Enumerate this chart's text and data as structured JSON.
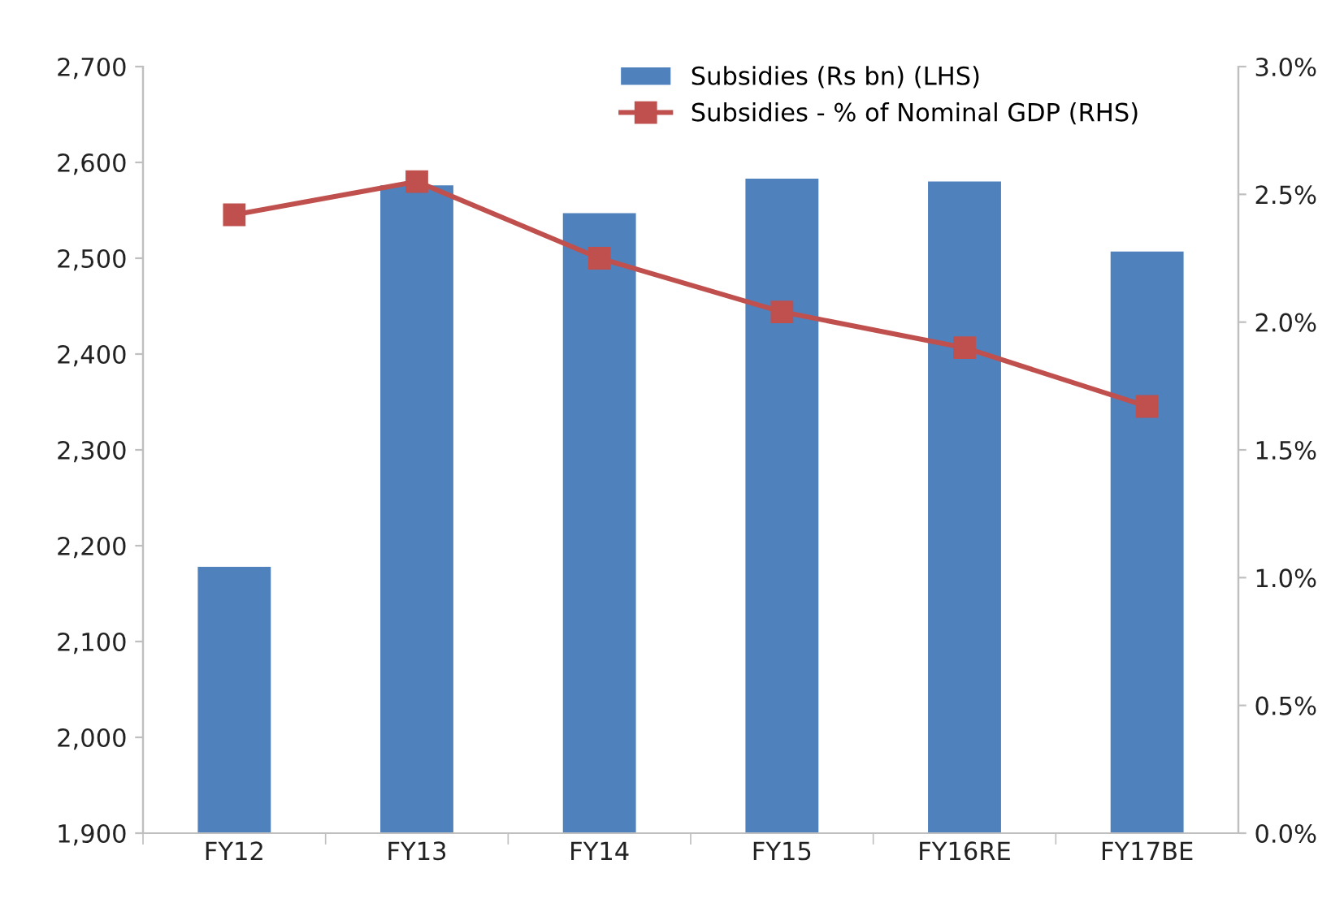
{
  "chart_data": {
    "type": "bar",
    "categories": [
      "FY12",
      "FY13",
      "FY14",
      "FY15",
      "FY16RE",
      "FY17BE"
    ],
    "series": [
      {
        "name": "Subsidies (Rs bn) (LHS)",
        "color": "#4f81bd",
        "values": [
          2178,
          2576,
          2547,
          2583,
          2580,
          2507
        ]
      },
      {
        "name": "Subsidies - % of Nominal GDP (RHS)",
        "type": "line",
        "axis": "y2",
        "color": "#c0504d",
        "marker": "square",
        "values": [
          2.42,
          2.55,
          2.25,
          2.04,
          1.9,
          1.67
        ]
      }
    ],
    "ylim": [
      1900,
      2700
    ],
    "yticks": [
      {
        "value": 1900,
        "label": "1,900"
      },
      {
        "value": 2000,
        "label": "2,000"
      },
      {
        "value": 2100,
        "label": "2,100"
      },
      {
        "value": 2200,
        "label": "2,200"
      },
      {
        "value": 2300,
        "label": "2,300"
      },
      {
        "value": 2400,
        "label": "2,400"
      },
      {
        "value": 2500,
        "label": "2,500"
      },
      {
        "value": 2600,
        "label": "2,600"
      },
      {
        "value": 2700,
        "label": "2,700"
      }
    ],
    "y2lim": [
      0,
      3
    ],
    "y2ticks": [
      {
        "value": 0,
        "label": "0.0%"
      },
      {
        "value": 0.5,
        "label": "0.5%"
      },
      {
        "value": 1,
        "label": "1.0%"
      },
      {
        "value": 1.5,
        "label": "1.5%"
      },
      {
        "value": 2,
        "label": "2.0%"
      },
      {
        "value": 2.5,
        "label": "2.5%"
      },
      {
        "value": 3,
        "label": "3.0%"
      }
    ],
    "legend": "top right"
  }
}
